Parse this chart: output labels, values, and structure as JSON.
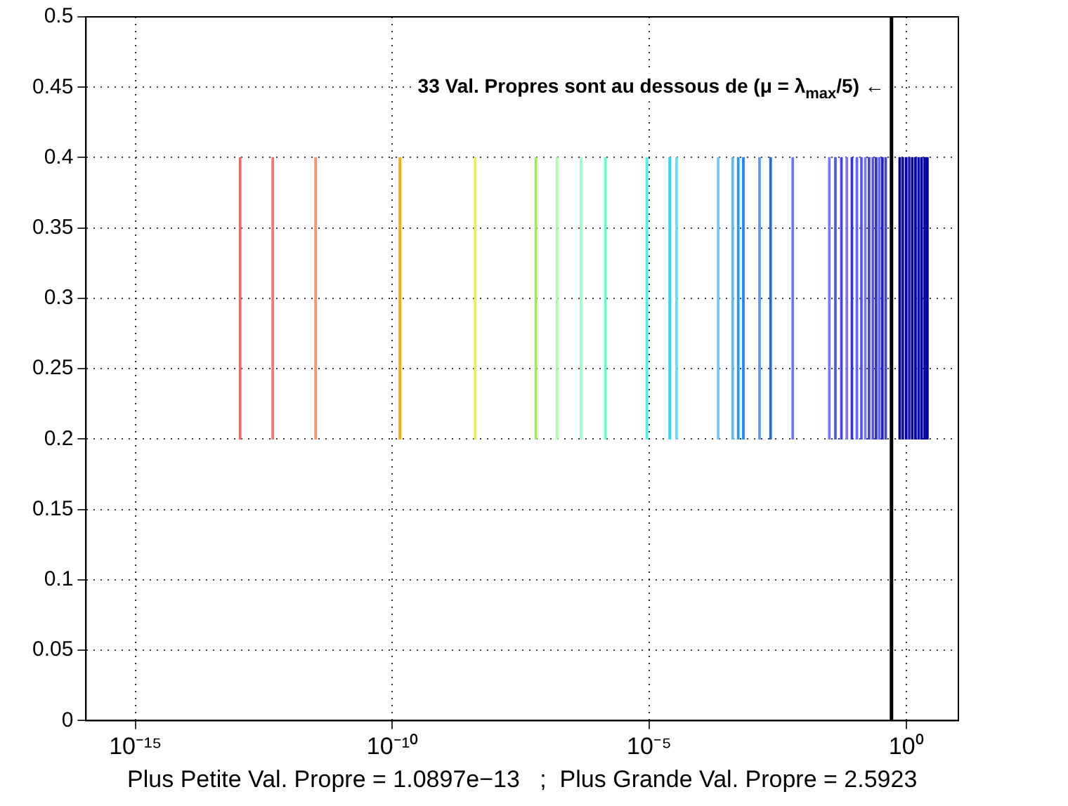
{
  "chart_data": {
    "type": "bar",
    "xlabel": "Plus Petite Val. Propre = 1.0897e−13   ;  Plus Grande Val. Propre = 2.5923",
    "x": [
      1.0897e-13,
      4.7e-13,
      3.2e-12,
      1.4e-10,
      4.1e-09,
      6.2e-08,
      1.6e-07,
      4.7e-07,
      1.4e-06,
      9e-06,
      2.5e-05,
      3.4e-05,
      0.00022,
      0.00042,
      0.00054,
      0.00068,
      0.0014,
      0.0023,
      0.0062,
      0.032,
      0.042,
      0.055,
      0.07,
      0.088,
      0.11,
      0.135,
      0.16,
      0.19,
      0.225,
      0.26,
      0.3,
      0.345,
      0.4,
      0.75,
      0.86,
      1.0,
      1.15,
      1.32,
      1.52,
      1.75,
      2.0,
      2.3,
      2.5923
    ],
    "values": [
      0.2,
      0.2,
      0.2,
      0.2,
      0.2,
      0.2,
      0.2,
      0.2,
      0.2,
      0.2,
      0.2,
      0.2,
      0.2,
      0.2,
      0.2,
      0.2,
      0.2,
      0.2,
      0.2,
      0.2,
      0.2,
      0.2,
      0.2,
      0.2,
      0.2,
      0.2,
      0.2,
      0.2,
      0.2,
      0.2,
      0.2,
      0.2,
      0.2,
      0.2,
      0.2,
      0.2,
      0.2,
      0.2,
      0.2,
      0.2,
      0.2,
      0.2,
      0.2
    ],
    "base": [
      0.2,
      0.2,
      0.2,
      0.2,
      0.2,
      0.2,
      0.2,
      0.2,
      0.2,
      0.2,
      0.2,
      0.2,
      0.2,
      0.2,
      0.2,
      0.2,
      0.2,
      0.2,
      0.2,
      0.2,
      0.2,
      0.2,
      0.2,
      0.2,
      0.2,
      0.2,
      0.2,
      0.2,
      0.2,
      0.2,
      0.2,
      0.2,
      0.2,
      0.2,
      0.2,
      0.2,
      0.2,
      0.2,
      0.2,
      0.2,
      0.2,
      0.2,
      0.2
    ],
    "colors": [
      "#ee6666",
      "#ff7070",
      "#ff9070",
      "#ffaa00",
      "#eeee44",
      "#99ee55",
      "#aaffaa",
      "#99ffcc",
      "#66ffcc",
      "#33ffee",
      "#22ddff",
      "#66ddff",
      "#66ccff",
      "#55bbff",
      "#2299ff",
      "#1188ff",
      "#5599ff",
      "#2266ee",
      "#6677ff",
      "#7777ff",
      "#5555ee",
      "#4444ee",
      "#7777ff",
      "#3333ee",
      "#6666ff",
      "#5555ee",
      "#7777ff",
      "#4444dd",
      "#5555ee",
      "#3333cc",
      "#6666ee",
      "#2222bb",
      "#4444cc",
      "#0000aa",
      "#1111aa",
      "#0000a0",
      "#2222bb",
      "#0000aa",
      "#0000b0",
      "#1111aa",
      "#0000a0",
      "#0000aa",
      "#000099"
    ],
    "xlim": [
      1.09e-16,
      10.4
    ],
    "xticks": [
      {
        "value": 1e-15,
        "label": "10⁻¹⁵"
      },
      {
        "value": 1e-10,
        "label": "10⁻¹⁰"
      },
      {
        "value": 1e-05,
        "label": "10⁻⁵"
      },
      {
        "value": 1,
        "label": "10⁰"
      }
    ],
    "ylim": [
      0,
      0.5
    ],
    "yticks": [
      0,
      0.05,
      0.1,
      0.15,
      0.2,
      0.25,
      0.3,
      0.35,
      0.4,
      0.45,
      0.5
    ],
    "log": "x",
    "grid": true,
    "legend": false,
    "ref_lines": [
      {
        "axis": "x",
        "value": 0.51846,
        "color": "#000000"
      }
    ],
    "annotations": [
      {
        "text": "33 Val. Propres sont au dessous de (μ = λ$_{max}$/5) ←",
        "x": 0.51846,
        "y": 0.45
      }
    ]
  }
}
